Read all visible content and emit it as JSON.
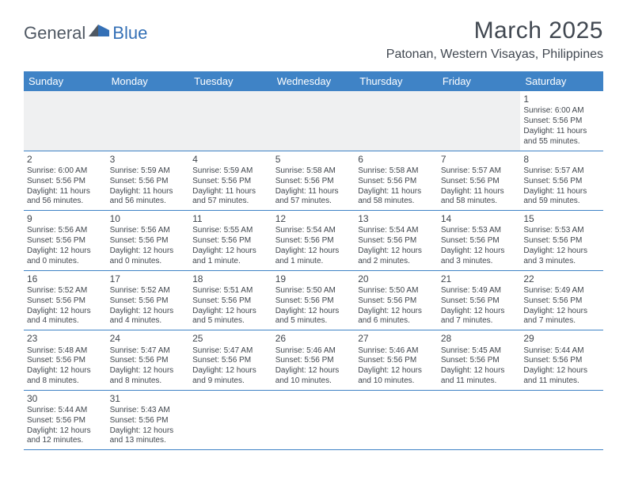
{
  "logo": {
    "dark": "General",
    "blue": "Blue"
  },
  "title": "March 2025",
  "location": "Patonan, Western Visayas, Philippines",
  "colors": {
    "header_bg": "#3f83c6",
    "header_text": "#ffffff",
    "divider_top": "#aab0b7",
    "divider_bottom": "#3f83c6",
    "body_text": "#40464d",
    "empty_bg": "#eff0f1",
    "logo_blue": "#3470b6",
    "logo_dark": "#4f5863"
  },
  "day_headers": [
    "Sunday",
    "Monday",
    "Tuesday",
    "Wednesday",
    "Thursday",
    "Friday",
    "Saturday"
  ],
  "weeks": [
    [
      null,
      null,
      null,
      null,
      null,
      null,
      {
        "n": "1",
        "sr": "6:00 AM",
        "ss": "5:56 PM",
        "dl": "11 hours and 55 minutes."
      }
    ],
    [
      {
        "n": "2",
        "sr": "6:00 AM",
        "ss": "5:56 PM",
        "dl": "11 hours and 56 minutes."
      },
      {
        "n": "3",
        "sr": "5:59 AM",
        "ss": "5:56 PM",
        "dl": "11 hours and 56 minutes."
      },
      {
        "n": "4",
        "sr": "5:59 AM",
        "ss": "5:56 PM",
        "dl": "11 hours and 57 minutes."
      },
      {
        "n": "5",
        "sr": "5:58 AM",
        "ss": "5:56 PM",
        "dl": "11 hours and 57 minutes."
      },
      {
        "n": "6",
        "sr": "5:58 AM",
        "ss": "5:56 PM",
        "dl": "11 hours and 58 minutes."
      },
      {
        "n": "7",
        "sr": "5:57 AM",
        "ss": "5:56 PM",
        "dl": "11 hours and 58 minutes."
      },
      {
        "n": "8",
        "sr": "5:57 AM",
        "ss": "5:56 PM",
        "dl": "11 hours and 59 minutes."
      }
    ],
    [
      {
        "n": "9",
        "sr": "5:56 AM",
        "ss": "5:56 PM",
        "dl": "12 hours and 0 minutes."
      },
      {
        "n": "10",
        "sr": "5:56 AM",
        "ss": "5:56 PM",
        "dl": "12 hours and 0 minutes."
      },
      {
        "n": "11",
        "sr": "5:55 AM",
        "ss": "5:56 PM",
        "dl": "12 hours and 1 minute."
      },
      {
        "n": "12",
        "sr": "5:54 AM",
        "ss": "5:56 PM",
        "dl": "12 hours and 1 minute."
      },
      {
        "n": "13",
        "sr": "5:54 AM",
        "ss": "5:56 PM",
        "dl": "12 hours and 2 minutes."
      },
      {
        "n": "14",
        "sr": "5:53 AM",
        "ss": "5:56 PM",
        "dl": "12 hours and 3 minutes."
      },
      {
        "n": "15",
        "sr": "5:53 AM",
        "ss": "5:56 PM",
        "dl": "12 hours and 3 minutes."
      }
    ],
    [
      {
        "n": "16",
        "sr": "5:52 AM",
        "ss": "5:56 PM",
        "dl": "12 hours and 4 minutes."
      },
      {
        "n": "17",
        "sr": "5:52 AM",
        "ss": "5:56 PM",
        "dl": "12 hours and 4 minutes."
      },
      {
        "n": "18",
        "sr": "5:51 AM",
        "ss": "5:56 PM",
        "dl": "12 hours and 5 minutes."
      },
      {
        "n": "19",
        "sr": "5:50 AM",
        "ss": "5:56 PM",
        "dl": "12 hours and 5 minutes."
      },
      {
        "n": "20",
        "sr": "5:50 AM",
        "ss": "5:56 PM",
        "dl": "12 hours and 6 minutes."
      },
      {
        "n": "21",
        "sr": "5:49 AM",
        "ss": "5:56 PM",
        "dl": "12 hours and 7 minutes."
      },
      {
        "n": "22",
        "sr": "5:49 AM",
        "ss": "5:56 PM",
        "dl": "12 hours and 7 minutes."
      }
    ],
    [
      {
        "n": "23",
        "sr": "5:48 AM",
        "ss": "5:56 PM",
        "dl": "12 hours and 8 minutes."
      },
      {
        "n": "24",
        "sr": "5:47 AM",
        "ss": "5:56 PM",
        "dl": "12 hours and 8 minutes."
      },
      {
        "n": "25",
        "sr": "5:47 AM",
        "ss": "5:56 PM",
        "dl": "12 hours and 9 minutes."
      },
      {
        "n": "26",
        "sr": "5:46 AM",
        "ss": "5:56 PM",
        "dl": "12 hours and 10 minutes."
      },
      {
        "n": "27",
        "sr": "5:46 AM",
        "ss": "5:56 PM",
        "dl": "12 hours and 10 minutes."
      },
      {
        "n": "28",
        "sr": "5:45 AM",
        "ss": "5:56 PM",
        "dl": "12 hours and 11 minutes."
      },
      {
        "n": "29",
        "sr": "5:44 AM",
        "ss": "5:56 PM",
        "dl": "12 hours and 11 minutes."
      }
    ],
    [
      {
        "n": "30",
        "sr": "5:44 AM",
        "ss": "5:56 PM",
        "dl": "12 hours and 12 minutes."
      },
      {
        "n": "31",
        "sr": "5:43 AM",
        "ss": "5:56 PM",
        "dl": "12 hours and 13 minutes."
      },
      null,
      null,
      null,
      null,
      null
    ]
  ],
  "labels": {
    "sunrise": "Sunrise: ",
    "sunset": "Sunset: ",
    "daylight": "Daylight: "
  }
}
